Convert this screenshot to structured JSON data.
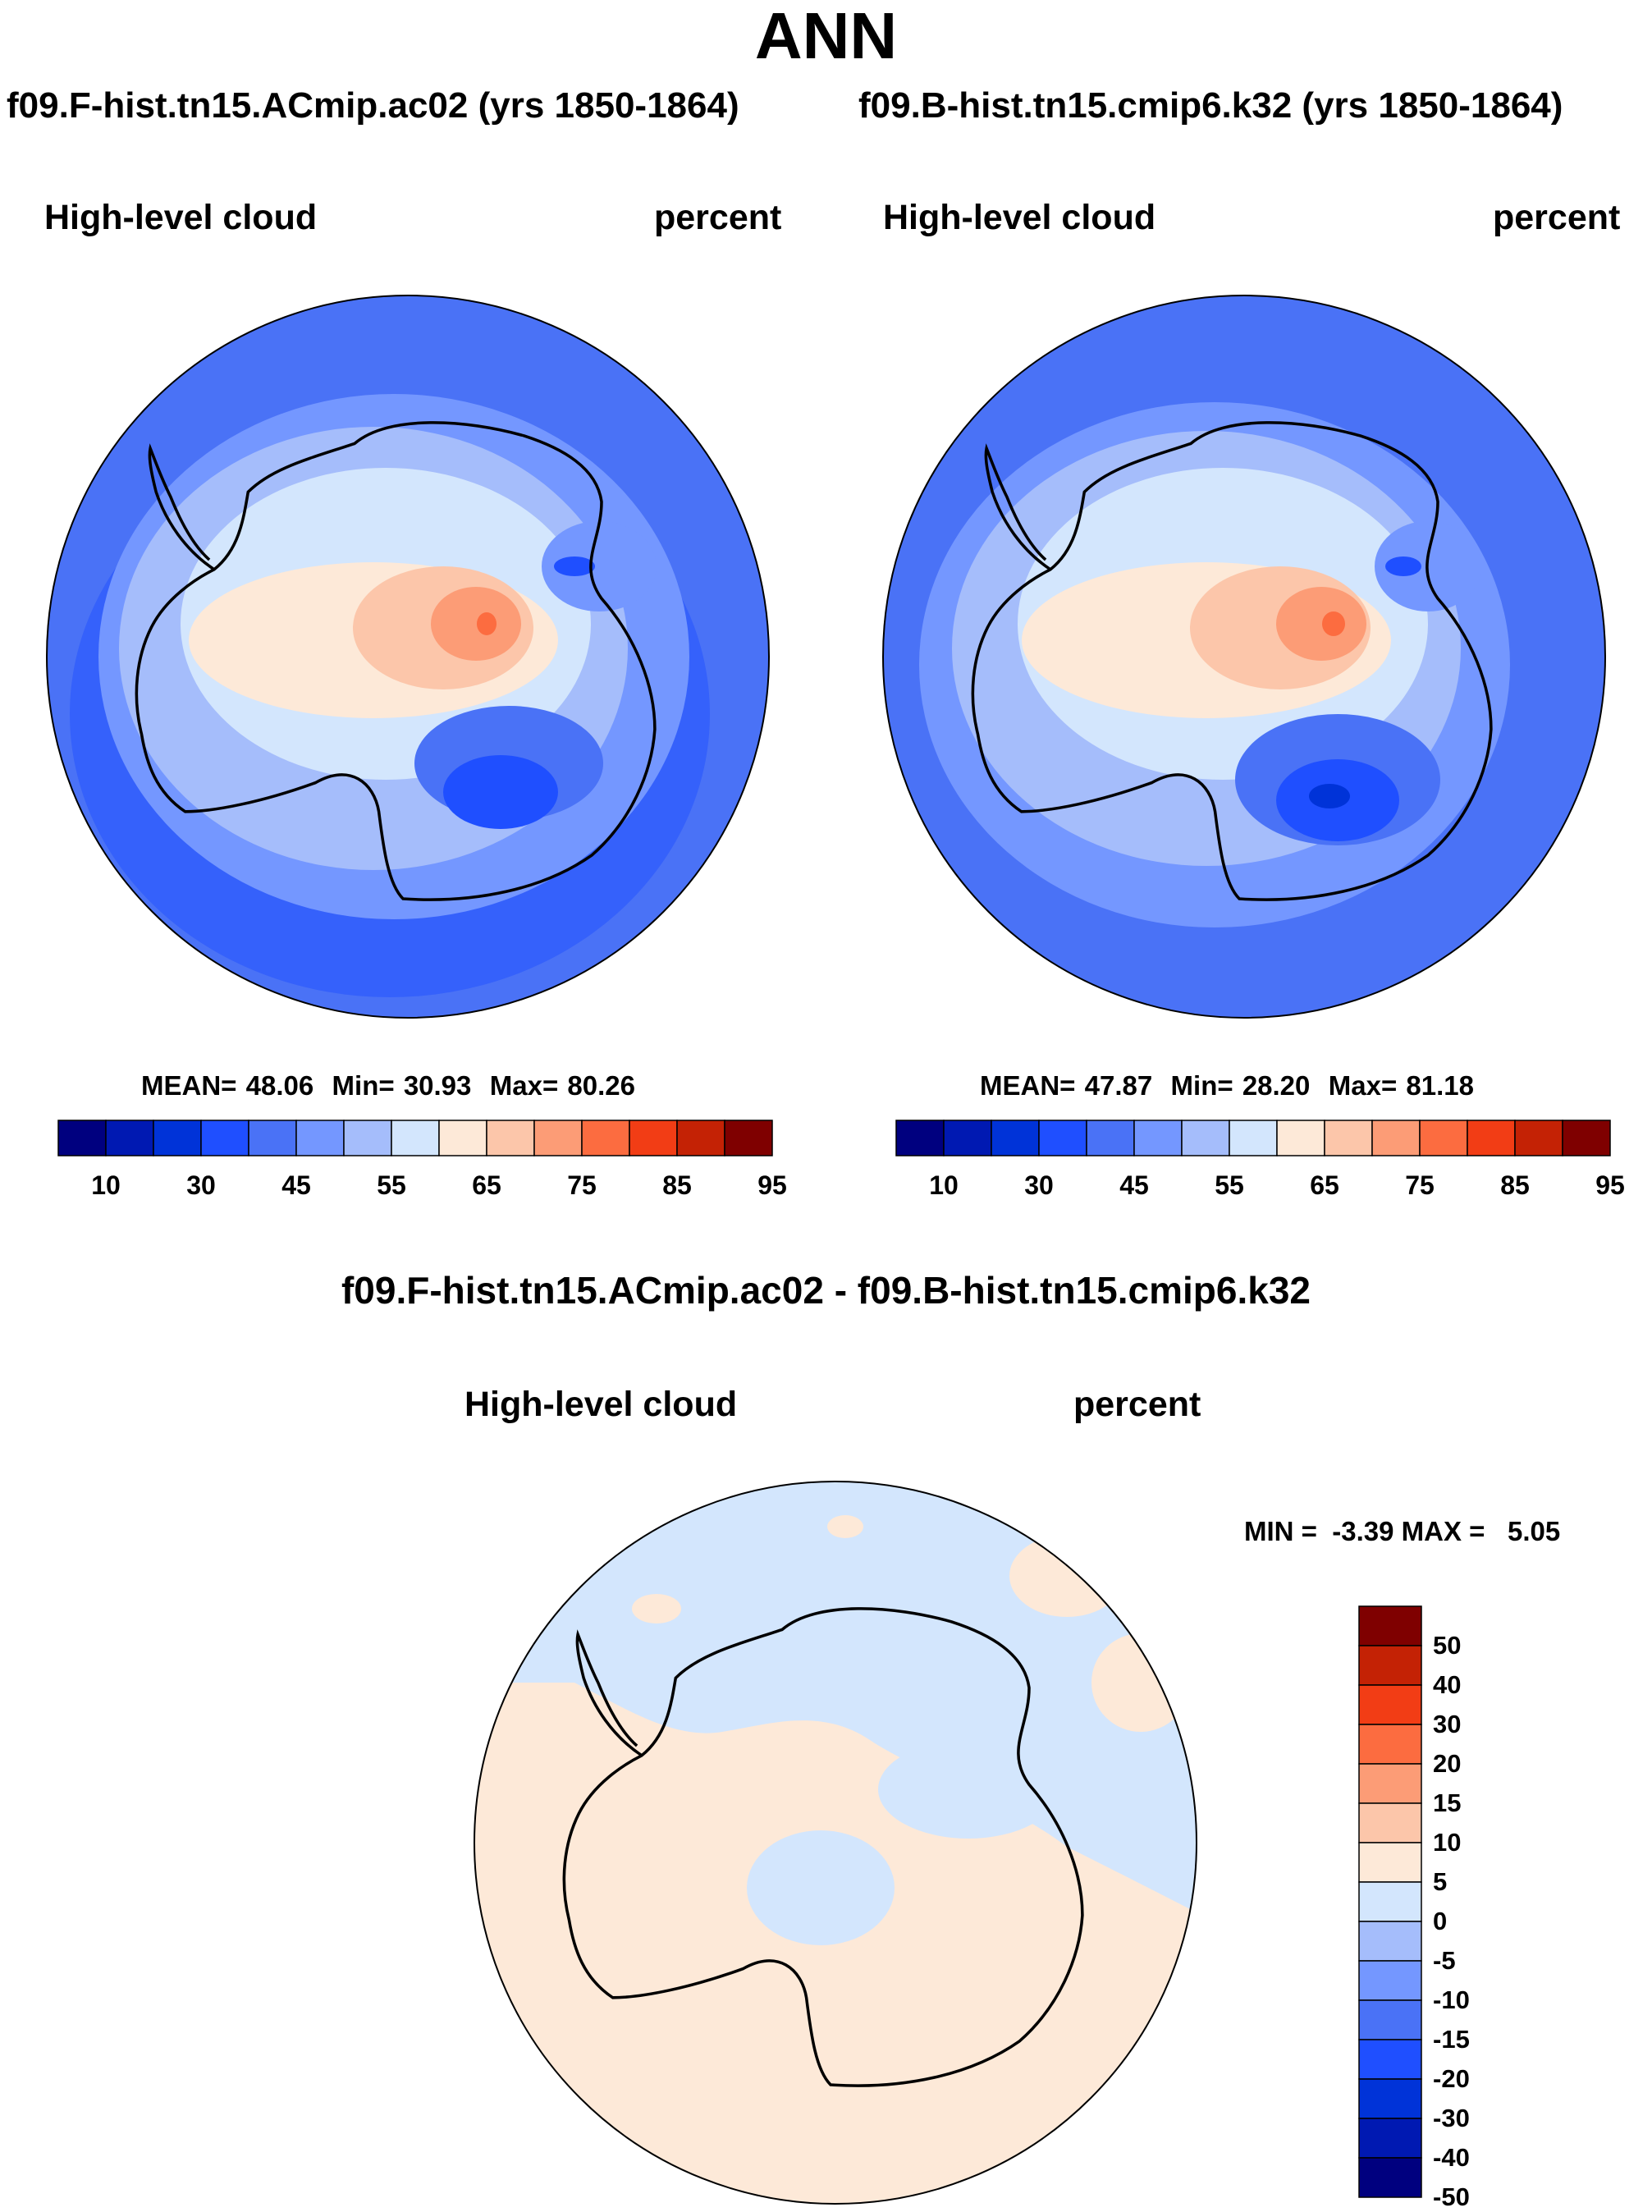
{
  "title": "ANN",
  "panels": [
    {
      "case": "f09.F-hist.tn15.ACmip.ac02 (yrs 1850-1864)",
      "variable": "High-level cloud",
      "units": "percent",
      "stats": {
        "mean_label": "MEAN=",
        "mean": "48.06",
        "min_label": "Min=",
        "min": "30.93",
        "max_label": "Max=",
        "max": "80.26"
      }
    },
    {
      "case": "f09.B-hist.tn15.cmip6.k32 (yrs 1850-1864)",
      "variable": "High-level cloud",
      "units": "percent",
      "stats": {
        "mean_label": "MEAN=",
        "mean": "47.87",
        "min_label": "Min=",
        "min": "28.20",
        "max_label": "Max=",
        "max": "81.18"
      }
    }
  ],
  "difference": {
    "title": "f09.F-hist.tn15.ACmip.ac02 - f09.B-hist.tn15.cmip6.k32",
    "variable": "High-level cloud",
    "units": "percent",
    "minmax": {
      "min_label": "MIN =",
      "min": "-3.39",
      "max_label": "MAX =",
      "max": "5.05"
    }
  },
  "colorbar_main": {
    "colors": [
      "#00007f",
      "#0019b2",
      "#0033d8",
      "#1f4fff",
      "#4a72f6",
      "#7497ff",
      "#a5bdfb",
      "#d3e6fd",
      "#fde9d8",
      "#fcc6aa",
      "#fc9c76",
      "#fc6c40",
      "#f23d15",
      "#c42205",
      "#7f0000"
    ],
    "tick_labels": [
      "10",
      "30",
      "45",
      "55",
      "65",
      "75",
      "85",
      "95"
    ],
    "tick_boundaries": [
      1,
      3,
      5,
      7,
      9,
      11,
      13,
      15
    ]
  },
  "colorbar_diff": {
    "colors": [
      "#7f0000",
      "#c42205",
      "#f23d15",
      "#fc6c40",
      "#fc9c76",
      "#fcc6aa",
      "#fde9d8",
      "#d3e6fd",
      "#a5bdfb",
      "#7497ff",
      "#4a72f6",
      "#1f4fff",
      "#0033d8",
      "#0019b2",
      "#00007f"
    ],
    "tick_labels": [
      "50",
      "40",
      "30",
      "20",
      "15",
      "10",
      "5",
      "0",
      "-5",
      "-10",
      "-15",
      "-20",
      "-30",
      "-40",
      "-50"
    ]
  }
}
